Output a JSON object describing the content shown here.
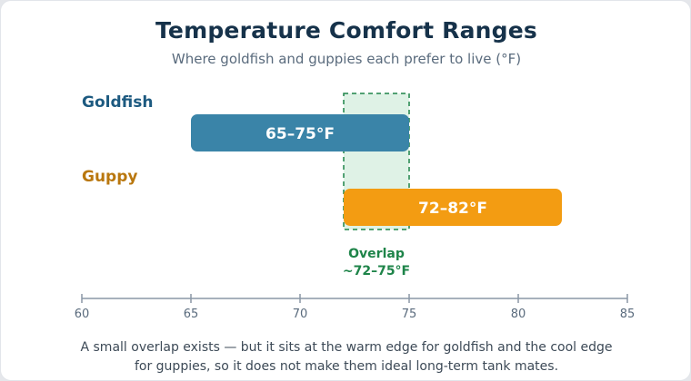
{
  "chart_data": {
    "type": "range-bar",
    "title": "Temperature Comfort Ranges",
    "subtitle": "Where goldfish and guppies each prefer to live (°F)",
    "x_ticks": [
      60,
      65,
      70,
      75,
      80,
      85
    ],
    "xlim": [
      60,
      85
    ],
    "series": [
      {
        "name": "Goldfish",
        "min": 65,
        "max": 75,
        "label": "65–75°F",
        "color": "#3a84a8",
        "name_color": "#1d5a80"
      },
      {
        "name": "Guppy",
        "min": 72,
        "max": 82,
        "label": "72–82°F",
        "color": "#f39c12",
        "name_color": "#b9770e"
      }
    ],
    "overlap": {
      "min": 72,
      "max": 75,
      "label_line1": "Overlap",
      "label_line2": "~72–75°F",
      "color": "#1e8449",
      "fill": "#dff2e6"
    },
    "note": "A small overlap exists — but it sits at the warm edge for goldfish and the cool edge for guppies, so it does not make them ideal long-term tank mates."
  }
}
